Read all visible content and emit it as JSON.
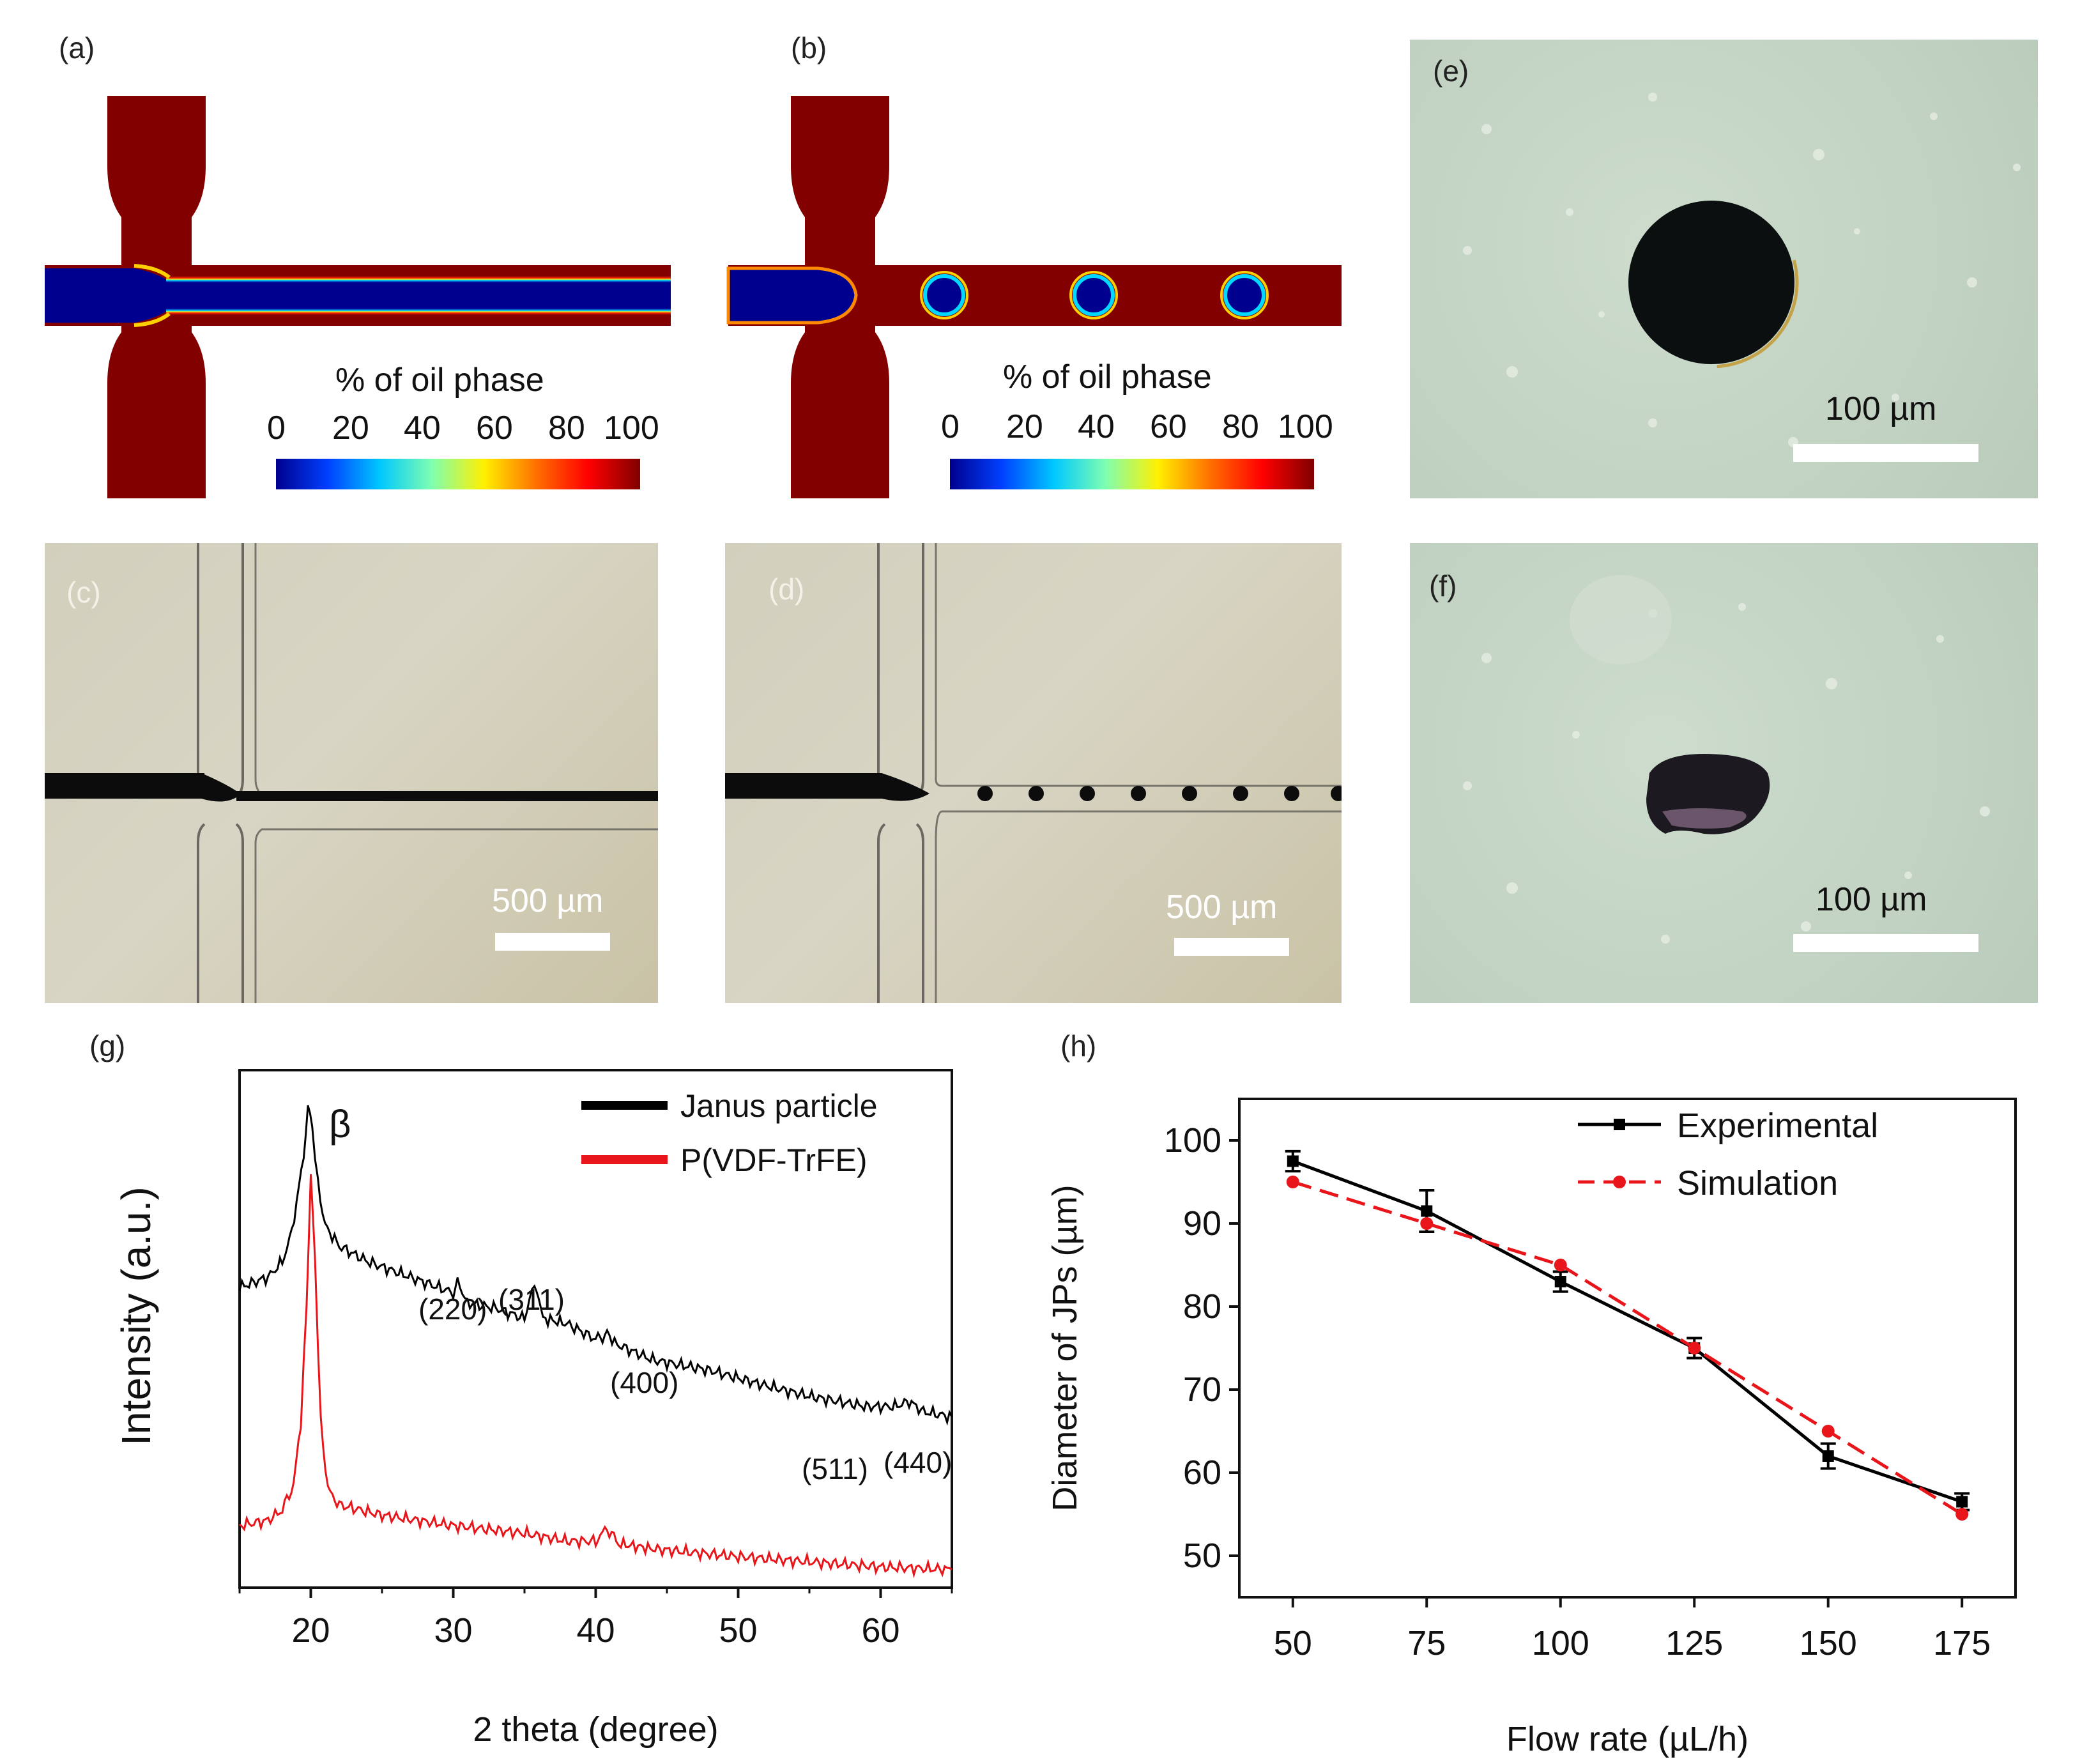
{
  "panels": {
    "a": {
      "label": "(a)"
    },
    "b": {
      "label": "(b)"
    },
    "c": {
      "label": "(c)",
      "scalebar": "500 µm"
    },
    "d": {
      "label": "(d)",
      "scalebar": "500 µm"
    },
    "e": {
      "label": "(e)",
      "scalebar": "100 µm"
    },
    "f": {
      "label": "(f)",
      "scalebar": "100 µm"
    },
    "g": {
      "label": "(g)"
    },
    "h": {
      "label": "(h)"
    }
  },
  "colorbar": {
    "title": "% of oil phase",
    "ticks": [
      "0",
      "20",
      "40",
      "60",
      "80",
      "100"
    ]
  },
  "colors": {
    "oil": "#820000",
    "water": "#00008f",
    "black_curve": "#000000",
    "red_curve": "#e8161b"
  },
  "chart_data": [
    {
      "id": "g",
      "type": "line",
      "xlabel": "2 theta (degree)",
      "ylabel": "Intensity (a.u.)",
      "xlim": [
        15,
        65
      ],
      "xticks": [
        "20",
        "30",
        "40",
        "50",
        "60"
      ],
      "series": [
        {
          "name": "Janus particle",
          "color": "#000000",
          "x": [
            15,
            17,
            18,
            18.5,
            19,
            19.5,
            19.8,
            20.1,
            20.5,
            21,
            22,
            24,
            26,
            28,
            30,
            30.3,
            31,
            33,
            34,
            35,
            35.7,
            36.3,
            38,
            40,
            40.8,
            41.5,
            44,
            48,
            52,
            55,
            57,
            59,
            61,
            62,
            63,
            65
          ],
          "y": [
            0.58,
            0.6,
            0.63,
            0.67,
            0.74,
            0.84,
            0.93,
            0.88,
            0.78,
            0.7,
            0.66,
            0.63,
            0.61,
            0.59,
            0.57,
            0.59,
            0.55,
            0.54,
            0.53,
            0.52,
            0.59,
            0.52,
            0.51,
            0.48,
            0.49,
            0.47,
            0.44,
            0.42,
            0.39,
            0.37,
            0.36,
            0.35,
            0.35,
            0.36,
            0.34,
            0.33
          ]
        },
        {
          "name": "P(VDF-TrFE)",
          "color": "#e8161b",
          "x": [
            15,
            17,
            18,
            18.8,
            19.3,
            19.7,
            20.0,
            20.3,
            20.7,
            21.2,
            22,
            25,
            30,
            35,
            38,
            40,
            40.8,
            41.6,
            44,
            50,
            55,
            60,
            65
          ],
          "y": [
            0.12,
            0.13,
            0.15,
            0.2,
            0.32,
            0.55,
            0.8,
            0.62,
            0.32,
            0.19,
            0.16,
            0.14,
            0.12,
            0.105,
            0.09,
            0.09,
            0.115,
            0.085,
            0.075,
            0.06,
            0.05,
            0.04,
            0.035
          ]
        }
      ],
      "annotations": [
        "β",
        "(220)",
        "(311)",
        "(400)",
        "(511)",
        "(440)"
      ]
    },
    {
      "id": "h",
      "type": "line",
      "xlabel": "Flow rate (µL/h)",
      "ylabel": "Diameter of JPs (µm)",
      "xlim": [
        40,
        185
      ],
      "ylim": [
        45,
        105
      ],
      "xticks": [
        "50",
        "75",
        "100",
        "125",
        "150",
        "175"
      ],
      "yticks": [
        "50",
        "60",
        "70",
        "80",
        "90",
        "100"
      ],
      "categories": [
        50,
        75,
        100,
        125,
        150,
        175
      ],
      "series": [
        {
          "name": "Experimental",
          "color": "#000000",
          "style": "solid",
          "values": [
            97.5,
            91.5,
            83,
            75,
            62,
            56.5
          ],
          "errors": [
            1.2,
            2.5,
            1.2,
            1.2,
            1.5,
            1.0
          ]
        },
        {
          "name": "Simulation",
          "color": "#e8161b",
          "style": "dashed",
          "values": [
            95,
            90,
            85,
            75,
            65,
            55
          ]
        }
      ]
    }
  ]
}
